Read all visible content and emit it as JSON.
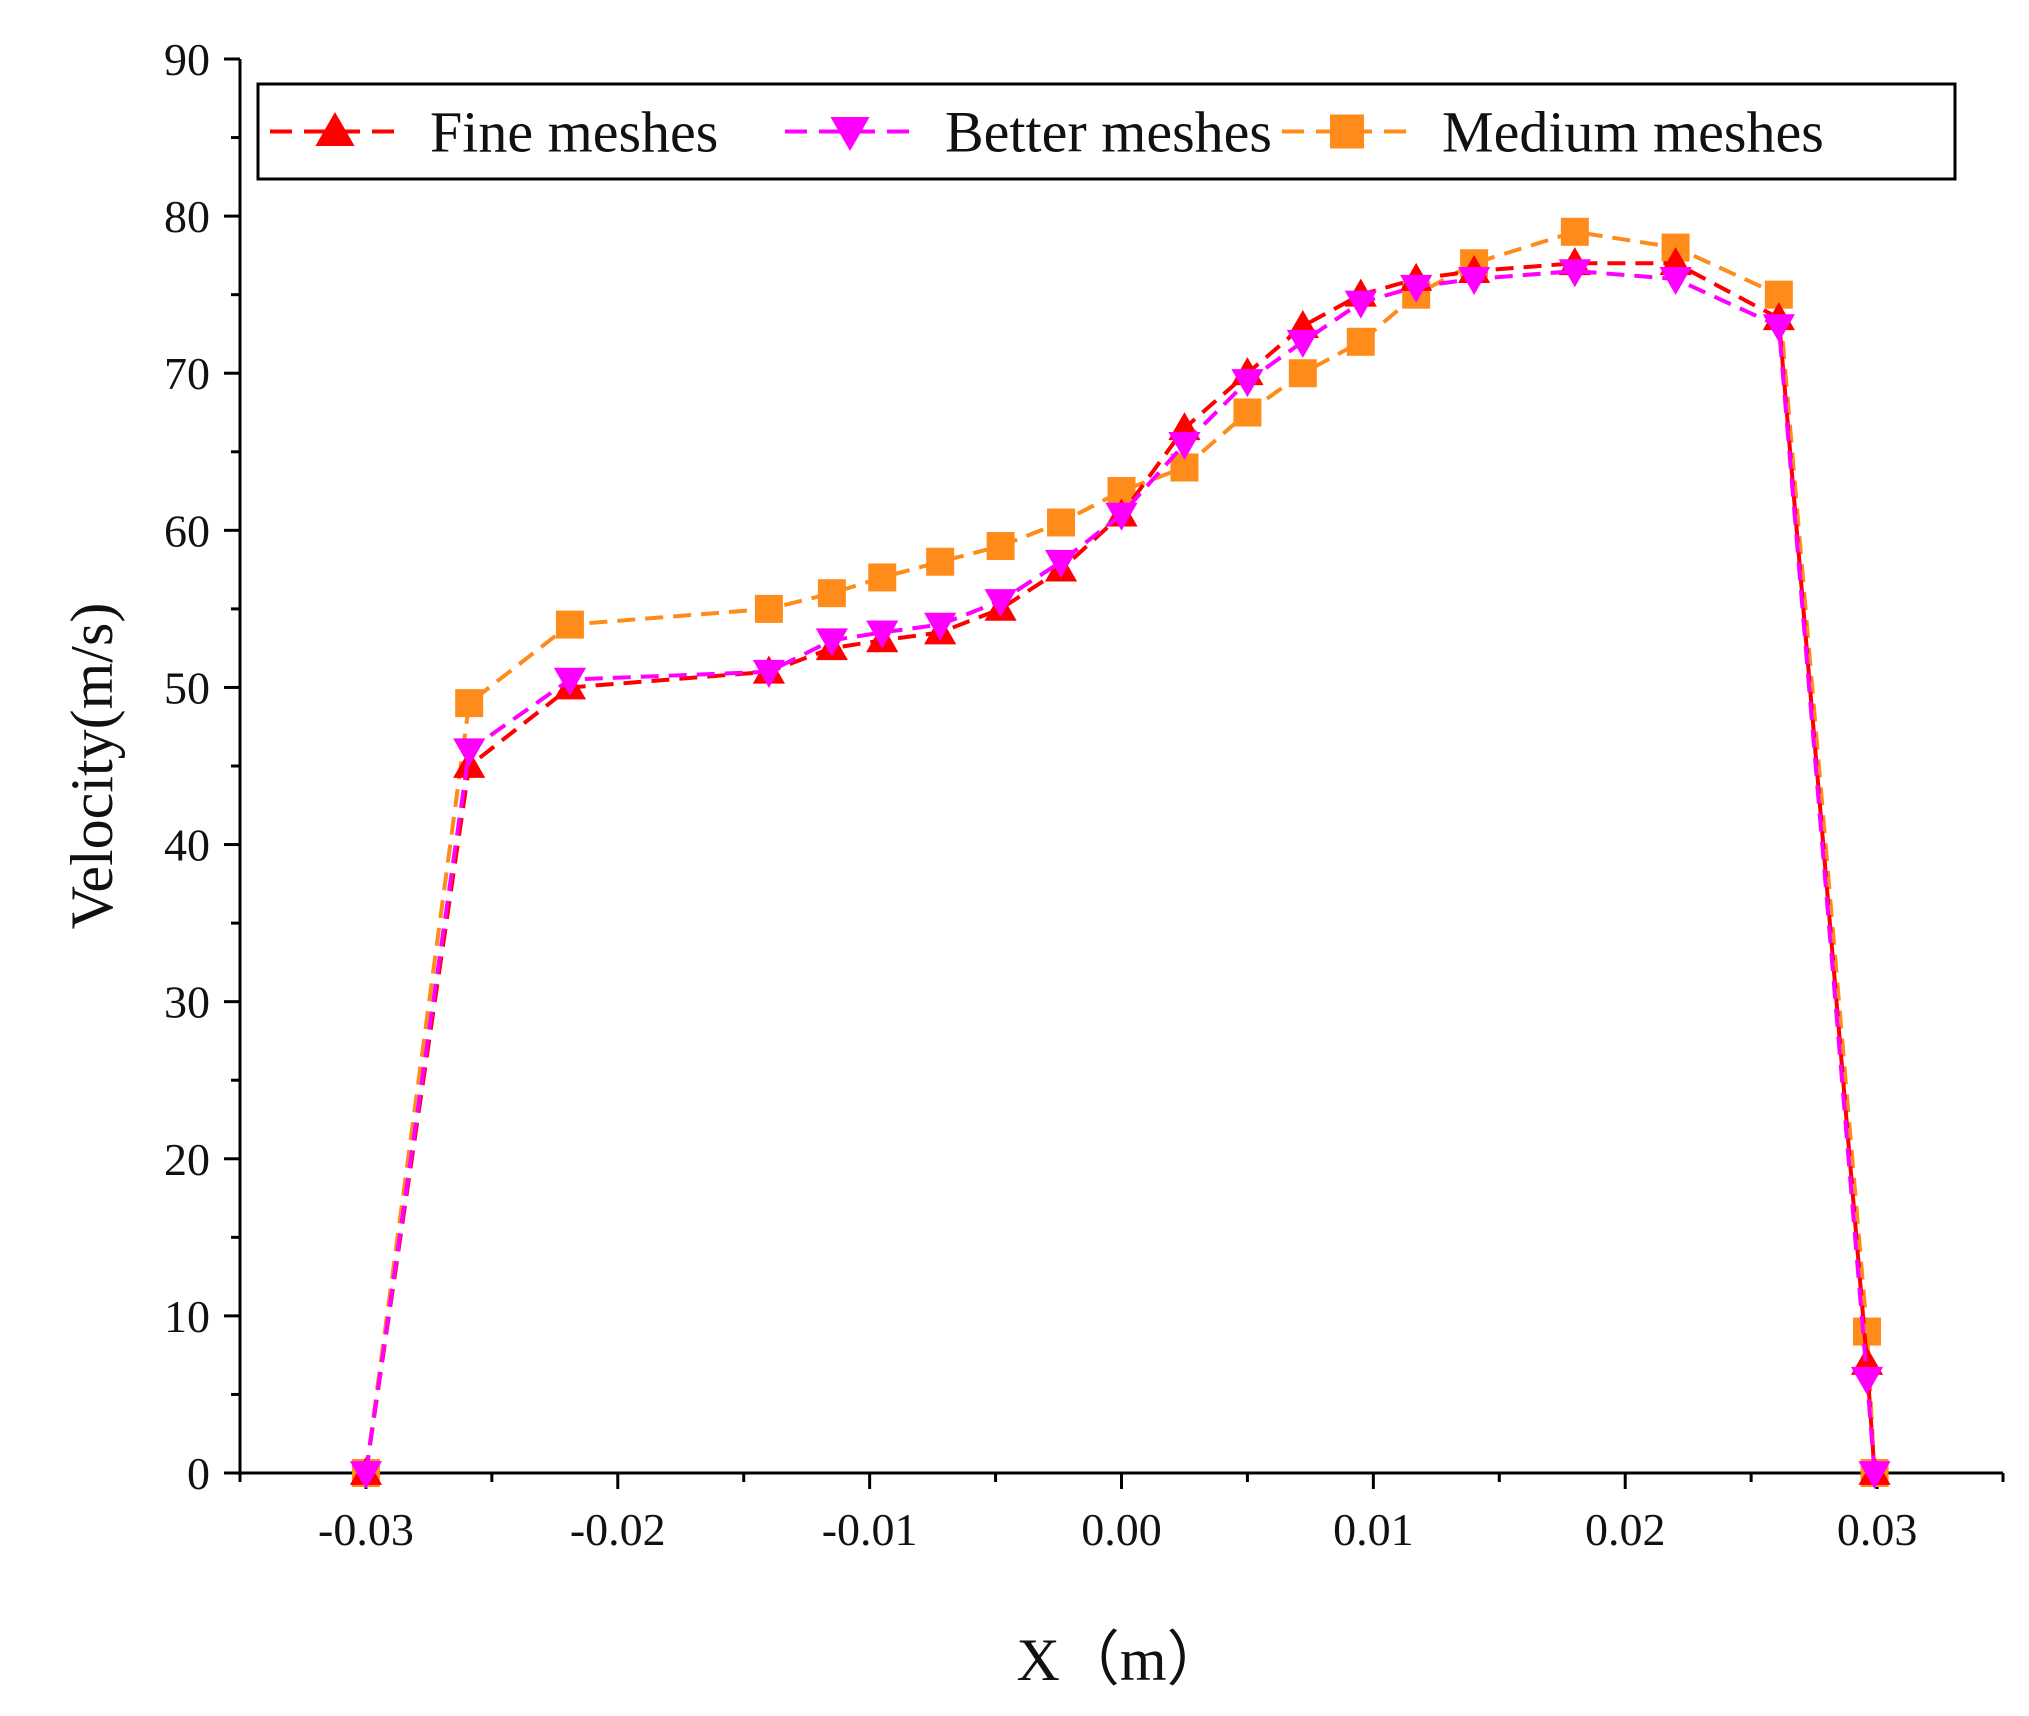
{
  "chart_data": {
    "type": "line",
    "title": "",
    "xlabel": "X（m）",
    "ylabel": "Velocity(m/s)",
    "xlim": [
      -0.035,
      0.035
    ],
    "ylim": [
      0,
      90
    ],
    "xticks": [
      -0.03,
      -0.02,
      -0.01,
      0.0,
      0.01,
      0.02,
      0.03
    ],
    "xtick_labels": [
      "-0.03",
      "-0.02",
      "-0.01",
      "0.00",
      "0.01",
      "0.02",
      "0.03"
    ],
    "yticks": [
      0,
      10,
      20,
      30,
      40,
      50,
      60,
      70,
      80,
      90
    ],
    "ytick_labels": [
      "0",
      "10",
      "20",
      "30",
      "40",
      "50",
      "60",
      "70",
      "80",
      "90"
    ],
    "grid": false,
    "legend_position": "top",
    "series": [
      {
        "name": "Fine meshes",
        "color": "#ff0000",
        "marker": "triangle-up",
        "x": [
          -0.03,
          -0.0259,
          -0.0219,
          -0.014,
          -0.0115,
          -0.0095,
          -0.0072,
          -0.0048,
          -0.0024,
          0.0,
          0.0025,
          0.005,
          0.0072,
          0.0095,
          0.0117,
          0.014,
          0.018,
          0.022,
          0.0261,
          0.0296,
          0.0299
        ],
        "y": [
          0,
          45,
          50,
          51,
          52.5,
          53,
          53.5,
          55,
          57.5,
          61,
          66.5,
          70,
          73,
          75,
          76,
          76.5,
          77,
          77,
          73.5,
          7,
          0
        ]
      },
      {
        "name": "Better meshes",
        "color": "#ff00ff",
        "marker": "triangle-down",
        "x": [
          -0.03,
          -0.0259,
          -0.0219,
          -0.014,
          -0.0115,
          -0.0095,
          -0.0072,
          -0.0048,
          -0.0024,
          0.0,
          0.0025,
          0.005,
          0.0072,
          0.0095,
          0.0117,
          0.014,
          0.018,
          0.022,
          0.0261,
          0.0296,
          0.0299
        ],
        "y": [
          0,
          46,
          50.5,
          51,
          53,
          53.5,
          54,
          55.5,
          58,
          61,
          65.5,
          69.5,
          72,
          74.5,
          75.5,
          76,
          76.5,
          76,
          73,
          6,
          0
        ]
      },
      {
        "name": "Medium meshes",
        "color": "#ff8c1a",
        "marker": "square",
        "x": [
          -0.03,
          -0.0259,
          -0.0219,
          -0.014,
          -0.0115,
          -0.0095,
          -0.0072,
          -0.0048,
          -0.0024,
          0.0,
          0.0025,
          0.005,
          0.0072,
          0.0095,
          0.0117,
          0.014,
          0.018,
          0.022,
          0.0261,
          0.0296,
          0.0299
        ],
        "y": [
          0,
          49,
          54,
          55,
          56,
          57,
          58,
          59,
          60.5,
          62.5,
          64,
          67.5,
          70,
          72,
          75,
          77,
          79,
          78,
          75,
          9,
          0
        ]
      }
    ]
  }
}
